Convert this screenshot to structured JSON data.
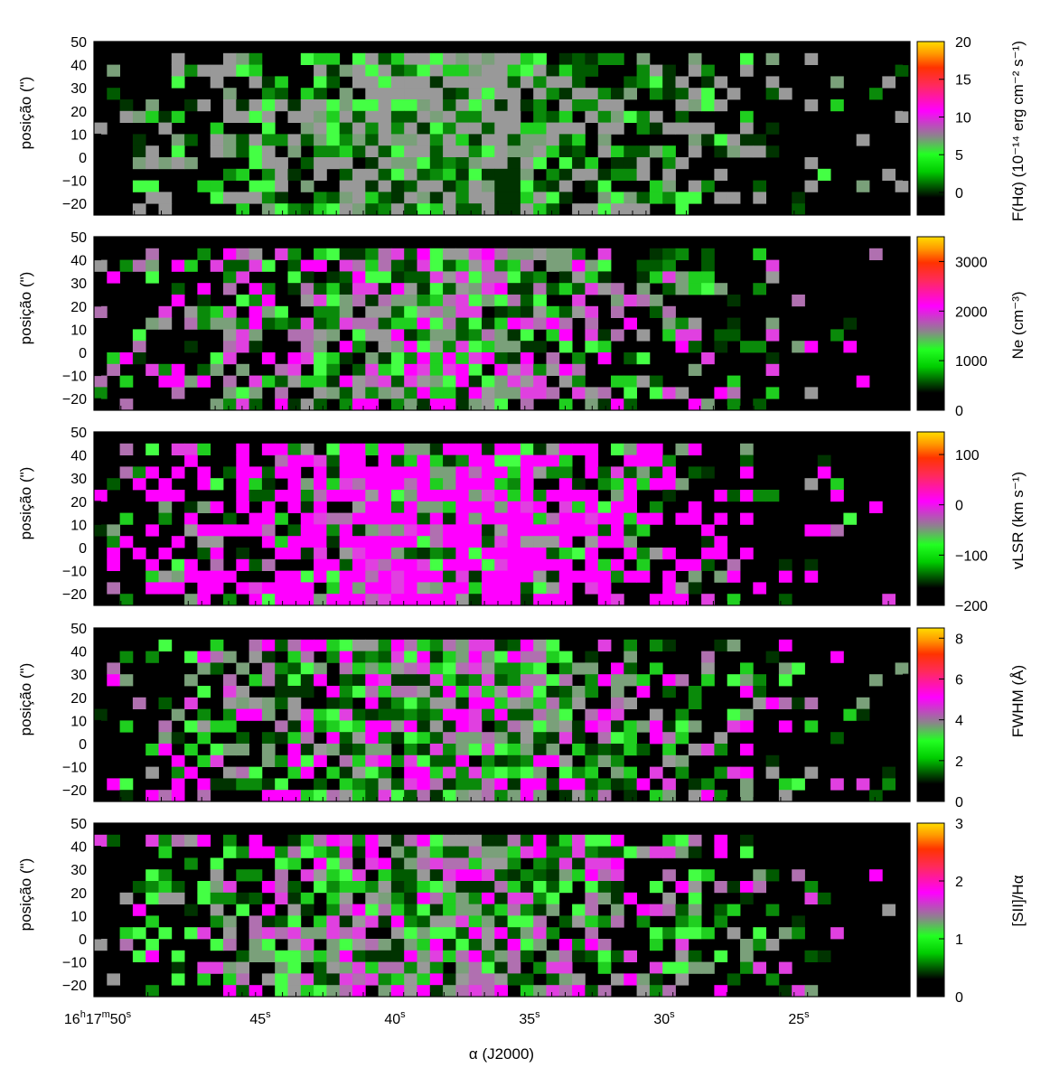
{
  "figure": {
    "xlabel": "α (J2000)",
    "x_tick_labels": [
      {
        "main": "16",
        "sup1": "h",
        "mid": "17",
        "sup2": "m",
        "tail": "50",
        "sup3": "s"
      },
      {
        "main": "45",
        "sup3": "s"
      },
      {
        "main": "40",
        "sup3": "s"
      },
      {
        "main": "35",
        "sup3": "s"
      },
      {
        "main": "30",
        "sup3": "s"
      },
      {
        "main": "25",
        "sup3": "s"
      }
    ]
  },
  "chart_data": [
    {
      "type": "heatmap",
      "ylabel": "posição (\")",
      "y_ticks": [
        "50",
        "40",
        "30",
        "20",
        "10",
        "0",
        "−10",
        "−20"
      ],
      "colorbar_label": "F(Hα) (10⁻¹⁴ erg cm⁻² s⁻¹)",
      "colorbar_ticks": [
        "20",
        "15",
        "10",
        "5",
        "0"
      ],
      "clim": [
        -3,
        20
      ]
    },
    {
      "type": "heatmap",
      "ylabel": "posição (\")",
      "y_ticks": [
        "50",
        "40",
        "30",
        "20",
        "10",
        "0",
        "−10",
        "−20"
      ],
      "colorbar_label": "Ne (cm⁻³)",
      "colorbar_ticks": [
        "3000",
        "2000",
        "1000",
        "0"
      ],
      "clim": [
        0,
        3500
      ]
    },
    {
      "type": "heatmap",
      "ylabel": "posição (\")",
      "y_ticks": [
        "50",
        "40",
        "30",
        "20",
        "10",
        "0",
        "−10",
        "−20"
      ],
      "colorbar_label": "vLSR (km s⁻¹)",
      "colorbar_ticks": [
        "100",
        "0",
        "−100",
        "−200"
      ],
      "clim": [
        -200,
        145
      ]
    },
    {
      "type": "heatmap",
      "ylabel": "posição (\")",
      "y_ticks": [
        "50",
        "40",
        "30",
        "20",
        "10",
        "0",
        "−10",
        "−20"
      ],
      "colorbar_label": "FWHM (Å)",
      "colorbar_ticks": [
        "8",
        "6",
        "4",
        "2",
        "0"
      ],
      "clim": [
        0,
        8.5
      ]
    },
    {
      "type": "heatmap",
      "ylabel": "posição (\")",
      "y_ticks": [
        "50",
        "40",
        "30",
        "20",
        "10",
        "0",
        "−10",
        "−20"
      ],
      "colorbar_label": "[SII]/Hα",
      "colorbar_ticks": [
        "3",
        "2",
        "1",
        "0"
      ],
      "clim": [
        0,
        3
      ]
    }
  ]
}
